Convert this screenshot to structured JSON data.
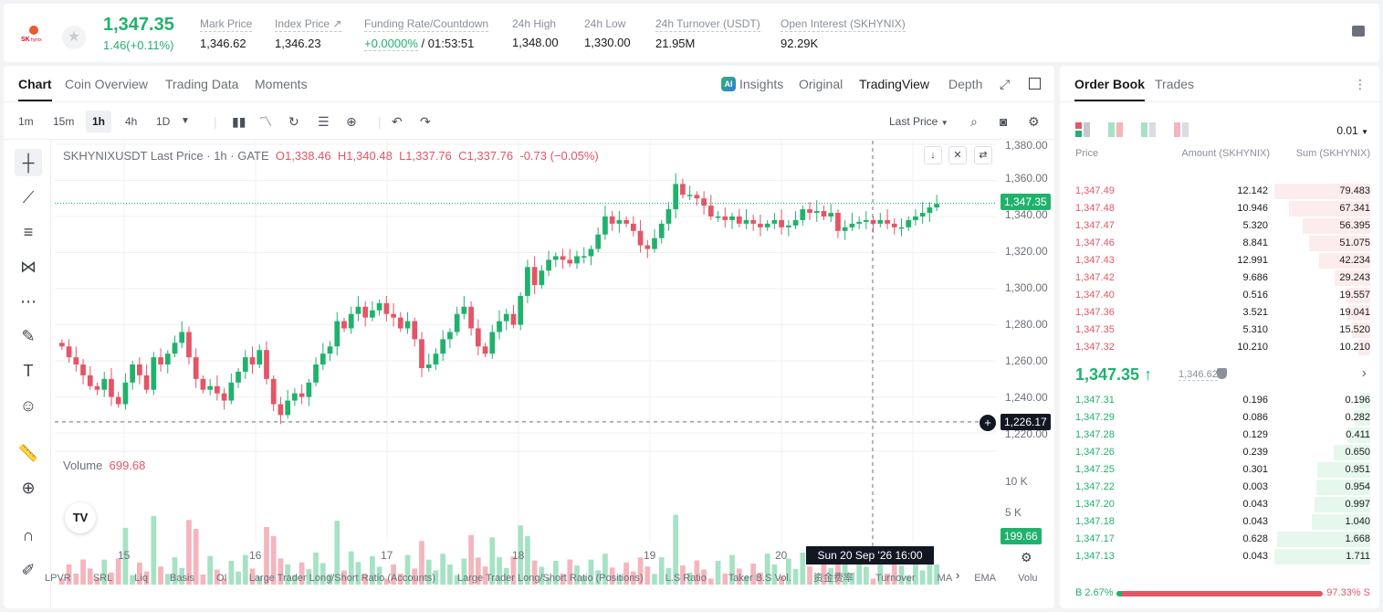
{
  "header": {
    "last_price": "1,347.35",
    "change": "1.46(+0.11%)",
    "stats": [
      {
        "label": "Mark Price",
        "value": "1,346.62"
      },
      {
        "label": "Index Price ↗",
        "value": "1,346.23"
      },
      {
        "label": "Funding Rate/Countdown",
        "value_green": "+0.0000%",
        "value": "/ 01:53:51"
      },
      {
        "label": "24h High",
        "value": "1,348.00"
      },
      {
        "label": "24h Low",
        "value": "1,330.00"
      },
      {
        "label": "24h Turnover (USDT)",
        "value": "21.95M"
      },
      {
        "label": "Open Interest (SKHYNIX)",
        "value": "92.29K"
      }
    ]
  },
  "chart_tabs": [
    "Chart",
    "Coin Overview",
    "Trading Data",
    "Moments"
  ],
  "chart_views": {
    "insights": "Insights",
    "original": "Original",
    "tradingview": "TradingView",
    "depth": "Depth"
  },
  "timeframes": [
    "1m",
    "15m",
    "1h",
    "4h",
    "1D"
  ],
  "price_type": "Last Price",
  "legend": {
    "title": "SKHYNIXUSDT Last Price · 1h · GATE",
    "o": "O1,338.46",
    "h": "H1,340.48",
    "l": "L1,337.76",
    "c": "C1,337.76",
    "chg": "-0.73 (−0.05%)"
  },
  "volume_legend": {
    "label": "Volume",
    "value": "699.68"
  },
  "price_axis_labels": [
    "1,380.00",
    "1,360.00",
    "1,340.00",
    "1,320.00",
    "1,300.00",
    "1,280.00",
    "1,260.00",
    "1,240.00",
    "1,220.00"
  ],
  "volume_axis_labels": [
    "10 K",
    "5 K"
  ],
  "price_tags": {
    "last": "1,347.35",
    "crosshair": "1,226.17",
    "volume": "199.66"
  },
  "x_labels": [
    "15",
    "16",
    "17",
    "18",
    "19",
    "20"
  ],
  "crosshair_time": "Sun 20 Sep '26   16:00",
  "indicators": [
    "LPVR",
    "SRL",
    "Liq",
    "Basis",
    "OI",
    "Large Trader Long/Short Ratio (Accounts)",
    "Large Trader Long/Short Ratio (Positions)",
    "L.S Ratio",
    "Taker B.S Vol.",
    "资金费率",
    "Turnover",
    "MA",
    "EMA",
    "Volu"
  ],
  "chart_data": {
    "type": "candlestick",
    "title": "SKHYNIXUSDT Last Price · 1h · GATE",
    "ylim": [
      1215,
      1382
    ],
    "candles_close": [
      1268,
      1262,
      1258,
      1252,
      1246,
      1244,
      1250,
      1240,
      1236,
      1248,
      1258,
      1252,
      1244,
      1262,
      1258,
      1264,
      1270,
      1276,
      1262,
      1250,
      1244,
      1246,
      1242,
      1238,
      1248,
      1254,
      1262,
      1258,
      1266,
      1250,
      1236,
      1230,
      1238,
      1242,
      1240,
      1248,
      1258,
      1264,
      1268,
      1282,
      1278,
      1286,
      1290,
      1284,
      1288,
      1292,
      1286,
      1284,
      1278,
      1282,
      1272,
      1256,
      1258,
      1264,
      1272,
      1276,
      1286,
      1290,
      1278,
      1268,
      1264,
      1276,
      1282,
      1286,
      1280,
      1296,
      1312,
      1302,
      1310,
      1316,
      1318,
      1316,
      1314,
      1318,
      1318,
      1322,
      1330,
      1340,
      1336,
      1338,
      1336,
      1332,
      1324,
      1322,
      1328,
      1336,
      1344,
      1358,
      1352,
      1352,
      1350,
      1346,
      1340,
      1340,
      1338,
      1340,
      1336,
      1338,
      1336,
      1334,
      1336,
      1338,
      1334,
      1335,
      1338,
      1344,
      1342,
      1343,
      1340,
      1342,
      1332,
      1334,
      1336,
      1337,
      1338,
      1336,
      1338,
      1336,
      1334,
      1334,
      1338,
      1340,
      1342,
      1345,
      1347
    ],
    "volume_max": 12000
  },
  "orderbook": {
    "tabs": [
      "Order Book",
      "Trades"
    ],
    "precision": "0.01",
    "headers": {
      "price": "Price",
      "amount": "Amount (SKHYNIX)",
      "sum": "Sum (SKHYNIX)"
    },
    "asks": [
      {
        "p": "1,347.49",
        "a": "12.142",
        "s": "79.483"
      },
      {
        "p": "1,347.48",
        "a": "10.946",
        "s": "67.341"
      },
      {
        "p": "1,347.47",
        "a": "5.320",
        "s": "56.395"
      },
      {
        "p": "1,347.46",
        "a": "8.841",
        "s": "51.075"
      },
      {
        "p": "1,347.43",
        "a": "12.991",
        "s": "42.234"
      },
      {
        "p": "1,347.42",
        "a": "9.686",
        "s": "29.243"
      },
      {
        "p": "1,347.40",
        "a": "0.516",
        "s": "19.557"
      },
      {
        "p": "1,347.36",
        "a": "3.521",
        "s": "19.041"
      },
      {
        "p": "1,347.35",
        "a": "5.310",
        "s": "15.520"
      },
      {
        "p": "1,347.32",
        "a": "10.210",
        "s": "10.210"
      }
    ],
    "mid": {
      "price": "1,347.35 ↑",
      "mark": "1,346.62"
    },
    "bids": [
      {
        "p": "1,347.31",
        "a": "0.196",
        "s": "0.196"
      },
      {
        "p": "1,347.29",
        "a": "0.086",
        "s": "0.282"
      },
      {
        "p": "1,347.28",
        "a": "0.129",
        "s": "0.411"
      },
      {
        "p": "1,347.26",
        "a": "0.239",
        "s": "0.650"
      },
      {
        "p": "1,347.25",
        "a": "0.301",
        "s": "0.951"
      },
      {
        "p": "1,347.22",
        "a": "0.003",
        "s": "0.954"
      },
      {
        "p": "1,347.20",
        "a": "0.043",
        "s": "0.997"
      },
      {
        "p": "1,347.18",
        "a": "0.043",
        "s": "1.040"
      },
      {
        "p": "1,347.17",
        "a": "0.628",
        "s": "1.668"
      },
      {
        "p": "1,347.13",
        "a": "0.043",
        "s": "1.711"
      }
    ],
    "buy_ratio": "B 2.67%",
    "sell_ratio": "97.33% S",
    "buy_ratio_value": 0.0267
  }
}
